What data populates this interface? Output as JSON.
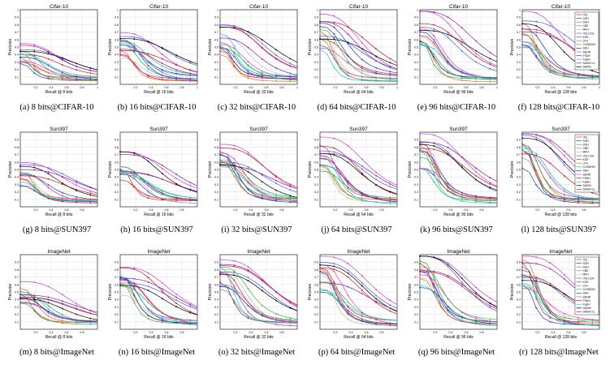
{
  "series_names": [
    "ITQ",
    "SGH",
    "DSH",
    "CBE",
    "MFH",
    "ITQ-CCA",
    "KSH",
    "LFH",
    "COSDISH",
    "SDH",
    "SDHR",
    "FSDH",
    "FastH",
    "SADIH",
    "SADIH-L1"
  ],
  "colors": {
    "ITQ": "#e41a1c",
    "SGH": "#1f3fbf",
    "DSH": "#22b04b",
    "CBE": "#e040c0",
    "MFH": "#c0c0c0",
    "ITQ-CCA": "#4b64d8",
    "KSH": "#a040a0",
    "LFH": "#e07020",
    "COSDISH": "#40b040",
    "SDH": "#2040a0",
    "SDHR": "#d040d0",
    "FSDH": "#c02020",
    "FastH": "#20c8d8",
    "SADIH": "#000000",
    "SADIH-L1": "#9020a0"
  },
  "legend_rows": {
    "0": [
      "ITQ",
      "SGH",
      "DSH",
      "CBE",
      "MFH",
      "ITQ-CCA",
      "KSH",
      "LFH",
      "COSDISH",
      "SDH",
      "SDHR",
      "FSDH",
      "FastH",
      "SADIH-L1",
      "SADIH"
    ],
    "1": [
      "ITQ",
      "SGH",
      "DSH",
      "CBE",
      "MFH",
      "ITQ-CCA",
      "KSH",
      "LFH",
      "COSDISH",
      "SDH",
      "SDHR",
      "FSDH",
      "FastH",
      "SADIH",
      "SADIH-L1"
    ],
    "2": [
      "ITQ",
      "SGH",
      "DSH",
      "CBE",
      "MFH",
      "ITQ-CCA",
      "KSH",
      "LFH",
      "COSDISH",
      "SDH",
      "SDHR",
      "FSDH",
      "FastH",
      "SADIH",
      "SADIH-L1"
    ]
  },
  "chart_data": [
    {
      "type": "line",
      "title": "Cifar-10",
      "xlabel": "Recall @ 8 bits",
      "ylabel": "Precision",
      "caption": "(a) 8 bits@CIFAR-10",
      "ylim": [
        0,
        1
      ],
      "xlim": [
        0,
        1
      ],
      "yticks": [
        "0.1",
        "0.2",
        "0.3",
        "0.4",
        "0.5",
        "0.6",
        "0.7",
        "0.8",
        "0.9",
        "1"
      ],
      "xticks": [
        "0.2",
        "0.4",
        "0.6",
        "0.8",
        "1"
      ],
      "legend": false,
      "row": 0,
      "col": 0,
      "level": 0.45,
      "spread": 0.6
    },
    {
      "type": "line",
      "title": "Cifar-10",
      "xlabel": "Recall @ 16 bits",
      "ylabel": "Precision",
      "caption": "(b) 16 bits@CIFAR-10",
      "ylim": [
        0,
        1
      ],
      "xlim": [
        0,
        1
      ],
      "yticks": [
        "0.1",
        "0.2",
        "0.3",
        "0.4",
        "0.5",
        "0.6",
        "0.7",
        "0.8",
        "0.9",
        "1"
      ],
      "xticks": [
        "0.2",
        "0.4",
        "0.6",
        "0.8",
        "1"
      ],
      "legend": false,
      "row": 0,
      "col": 1,
      "level": 0.6,
      "spread": 0.6
    },
    {
      "type": "line",
      "title": "Cifar-10",
      "xlabel": "Recall @ 32 bits",
      "ylabel": "Precision",
      "caption": "(c) 32 bits@CIFAR-10",
      "ylim": [
        0,
        1
      ],
      "xlim": [
        0,
        1
      ],
      "yticks": [
        "0.1",
        "0.2",
        "0.3",
        "0.4",
        "0.5",
        "0.6",
        "0.7",
        "0.8",
        "0.9",
        "1"
      ],
      "xticks": [
        "0.2",
        "0.4",
        "0.6",
        "0.8",
        "1"
      ],
      "legend": false,
      "row": 0,
      "col": 2,
      "level": 0.7,
      "spread": 0.6
    },
    {
      "type": "line",
      "title": "Cifar-10",
      "xlabel": "Recall @ 64 bits",
      "ylabel": "Precision",
      "caption": "(d) 64 bits@CIFAR-10",
      "ylim": [
        0,
        1
      ],
      "xlim": [
        0,
        1
      ],
      "yticks": [
        "0.1",
        "0.2",
        "0.3",
        "0.4",
        "0.5",
        "0.6",
        "0.7",
        "0.8",
        "0.9",
        "1"
      ],
      "xticks": [
        "0.2",
        "0.4",
        "0.6",
        "0.8",
        "1"
      ],
      "legend": false,
      "row": 0,
      "col": 3,
      "level": 0.85,
      "spread": 0.55
    },
    {
      "type": "line",
      "title": "Cifar-10",
      "xlabel": "Recall @ 96 bits",
      "ylabel": "Precision",
      "caption": "(e) 96 bits@CIFAR-10",
      "ylim": [
        0,
        1
      ],
      "xlim": [
        0,
        1
      ],
      "yticks": [
        "0.1",
        "0.2",
        "0.3",
        "0.4",
        "0.5",
        "0.6",
        "0.7",
        "0.8",
        "0.9",
        "1"
      ],
      "xticks": [
        "0.2",
        "0.4",
        "0.6",
        "0.8",
        "1"
      ],
      "legend": false,
      "row": 0,
      "col": 4,
      "level": 0.9,
      "spread": 0.5
    },
    {
      "type": "line",
      "title": "Cifar-10",
      "xlabel": "Recall @ 128 bits",
      "ylabel": "Precision",
      "caption": "(f) 128 bits@CIFAR-10",
      "ylim": [
        0,
        1
      ],
      "xlim": [
        0,
        1
      ],
      "yticks": [
        "0.1",
        "0.2",
        "0.3",
        "0.4",
        "0.5",
        "0.6",
        "0.7",
        "0.8",
        "0.9",
        "1"
      ],
      "xticks": [
        "0.2",
        "0.4",
        "0.6",
        "0.8",
        "1"
      ],
      "legend": true,
      "row": 0,
      "col": 5,
      "level": 0.9,
      "spread": 0.5
    },
    {
      "type": "line",
      "title": "Sun397",
      "xlabel": "Recall @ 8 bits",
      "ylabel": "Precision",
      "caption": "(g) 8 bits@SUN397",
      "ylim": [
        0,
        1
      ],
      "xlim": [
        0,
        1
      ],
      "yticks": [
        "0.1",
        "0.2",
        "0.3",
        "0.4",
        "0.5",
        "0.6",
        "0.7",
        "0.8",
        "0.9"
      ],
      "xticks": [
        "0.2",
        "0.4",
        "0.6",
        "0.8"
      ],
      "legend": false,
      "row": 1,
      "col": 0,
      "level": 0.5,
      "spread": 0.6
    },
    {
      "type": "line",
      "title": "Sun397",
      "xlabel": "Recall @ 16 bits",
      "ylabel": "Precision",
      "caption": "(h) 16 bits@SUN397",
      "ylim": [
        0,
        1
      ],
      "xlim": [
        0,
        1
      ],
      "yticks": [
        "0.1",
        "0.2",
        "0.3",
        "0.4",
        "0.5",
        "0.6",
        "0.7",
        "0.8",
        "0.9"
      ],
      "xticks": [
        "0.2",
        "0.4",
        "0.6",
        "0.8"
      ],
      "legend": false,
      "row": 1,
      "col": 1,
      "level": 0.65,
      "spread": 0.6
    },
    {
      "type": "line",
      "title": "Sun397",
      "xlabel": "Recall @ 32 bits",
      "ylabel": "Precision",
      "caption": "(i) 32 bits@SUN397",
      "ylim": [
        0,
        1
      ],
      "xlim": [
        0,
        1
      ],
      "yticks": [
        "0.1",
        "0.2",
        "0.3",
        "0.4",
        "0.5",
        "0.6",
        "0.7",
        "0.8",
        "0.9"
      ],
      "xticks": [
        "0.2",
        "0.4",
        "0.6",
        "0.8"
      ],
      "legend": false,
      "row": 1,
      "col": 2,
      "level": 0.75,
      "spread": 0.55
    },
    {
      "type": "line",
      "title": "Sun397",
      "xlabel": "Recall @ 64 bits",
      "ylabel": "Precision",
      "caption": "(j) 64 bits@SUN397",
      "ylim": [
        0,
        1
      ],
      "xlim": [
        0,
        1
      ],
      "yticks": [
        "0.1",
        "0.2",
        "0.3",
        "0.4",
        "0.5",
        "0.6",
        "0.7",
        "0.8",
        "0.9"
      ],
      "xticks": [
        "0.2",
        "0.4",
        "0.6",
        "0.8"
      ],
      "legend": false,
      "row": 1,
      "col": 3,
      "level": 0.85,
      "spread": 0.5
    },
    {
      "type": "line",
      "title": "Sun397",
      "xlabel": "Recall @ 96 bits",
      "ylabel": "Precision",
      "caption": "(k) 96 bits@SUN397",
      "ylim": [
        0,
        1
      ],
      "xlim": [
        0,
        1
      ],
      "yticks": [
        "0.1",
        "0.2",
        "0.3",
        "0.4",
        "0.5",
        "0.6",
        "0.7",
        "0.8",
        "0.9"
      ],
      "xticks": [
        "0.2",
        "0.4",
        "0.6",
        "0.8"
      ],
      "legend": false,
      "row": 1,
      "col": 4,
      "level": 0.9,
      "spread": 0.5
    },
    {
      "type": "line",
      "title": "Sun397",
      "xlabel": "Recall @ 128 bits",
      "ylabel": "Precision",
      "caption": "(l) 128 bits@SUN397",
      "ylim": [
        0,
        1
      ],
      "xlim": [
        0,
        1
      ],
      "yticks": [
        "0.1",
        "0.2",
        "0.3",
        "0.4",
        "0.5",
        "0.6",
        "0.7",
        "0.8",
        "0.9"
      ],
      "xticks": [
        "0.2",
        "0.4",
        "0.6",
        "0.8"
      ],
      "legend": true,
      "row": 1,
      "col": 5,
      "level": 0.9,
      "spread": 0.5
    },
    {
      "type": "line",
      "title": "ImageNet",
      "xlabel": "Recall @ 8 bits",
      "ylabel": "Precision",
      "caption": "(m) 8 bits@ImageNet",
      "ylim": [
        0,
        1
      ],
      "xlim": [
        0,
        1
      ],
      "yticks": [
        "0.1",
        "0.2",
        "0.3",
        "0.4",
        "0.5",
        "0.6",
        "0.7",
        "0.8",
        "0.9"
      ],
      "xticks": [
        "0.2",
        "0.4",
        "0.6",
        "0.8"
      ],
      "legend": false,
      "row": 2,
      "col": 0,
      "level": 0.55,
      "spread": 0.6
    },
    {
      "type": "line",
      "title": "ImageNet",
      "xlabel": "Recall @ 16 bits",
      "ylabel": "Precision",
      "caption": "(n) 16 bits@ImageNet",
      "ylim": [
        0,
        1
      ],
      "xlim": [
        0,
        1
      ],
      "yticks": [
        "0.1",
        "0.2",
        "0.3",
        "0.4",
        "0.5",
        "0.6",
        "0.7",
        "0.8",
        "0.9"
      ],
      "xticks": [
        "0.2",
        "0.4",
        "0.6",
        "0.8"
      ],
      "legend": false,
      "row": 2,
      "col": 1,
      "level": 0.75,
      "spread": 0.6
    },
    {
      "type": "line",
      "title": "ImageNet",
      "xlabel": "Recall @ 32 bits",
      "ylabel": "Precision",
      "caption": "(o) 32 bits@ImageNet",
      "ylim": [
        0,
        1
      ],
      "xlim": [
        0,
        1
      ],
      "yticks": [
        "0.1",
        "0.2",
        "0.3",
        "0.4",
        "0.5",
        "0.6",
        "0.7",
        "0.8",
        "0.9"
      ],
      "xticks": [
        "0.2",
        "0.4",
        "0.6",
        "0.8"
      ],
      "legend": false,
      "row": 2,
      "col": 2,
      "level": 0.85,
      "spread": 0.55
    },
    {
      "type": "line",
      "title": "ImageNet",
      "xlabel": "Recall @ 64 bits",
      "ylabel": "Precision",
      "caption": "(p) 64 bits@ImageNet",
      "ylim": [
        0,
        1
      ],
      "xlim": [
        0,
        1
      ],
      "yticks": [
        "0.1",
        "0.2",
        "0.3",
        "0.4",
        "0.5",
        "0.6",
        "0.7",
        "0.8",
        "0.9"
      ],
      "xticks": [
        "0.2",
        "0.4",
        "0.6",
        "0.8"
      ],
      "legend": false,
      "row": 2,
      "col": 3,
      "level": 0.9,
      "spread": 0.5
    },
    {
      "type": "line",
      "title": "ImageNet",
      "xlabel": "Recall @ 96 bits",
      "ylabel": "Precision",
      "caption": "(q) 96 bits@ImageNet",
      "ylim": [
        0,
        1
      ],
      "xlim": [
        0,
        1
      ],
      "yticks": [
        "0.1",
        "0.2",
        "0.3",
        "0.4",
        "0.5",
        "0.6",
        "0.7",
        "0.8",
        "0.9"
      ],
      "xticks": [
        "0.2",
        "0.4",
        "0.6",
        "0.8"
      ],
      "legend": false,
      "row": 2,
      "col": 4,
      "level": 0.95,
      "spread": 0.5
    },
    {
      "type": "line",
      "title": "ImageNet",
      "xlabel": "Recall @ 128 bits",
      "ylabel": "Precision",
      "caption": "(r) 128 bits@ImageNet",
      "ylim": [
        0,
        1
      ],
      "xlim": [
        0,
        1
      ],
      "yticks": [
        "0.1",
        "0.2",
        "0.3",
        "0.4",
        "0.5",
        "0.6",
        "0.7",
        "0.8",
        "0.9"
      ],
      "xticks": [
        "0.2",
        "0.4",
        "0.6",
        "0.8"
      ],
      "legend": true,
      "row": 2,
      "col": 5,
      "level": 0.95,
      "spread": 0.5
    }
  ]
}
